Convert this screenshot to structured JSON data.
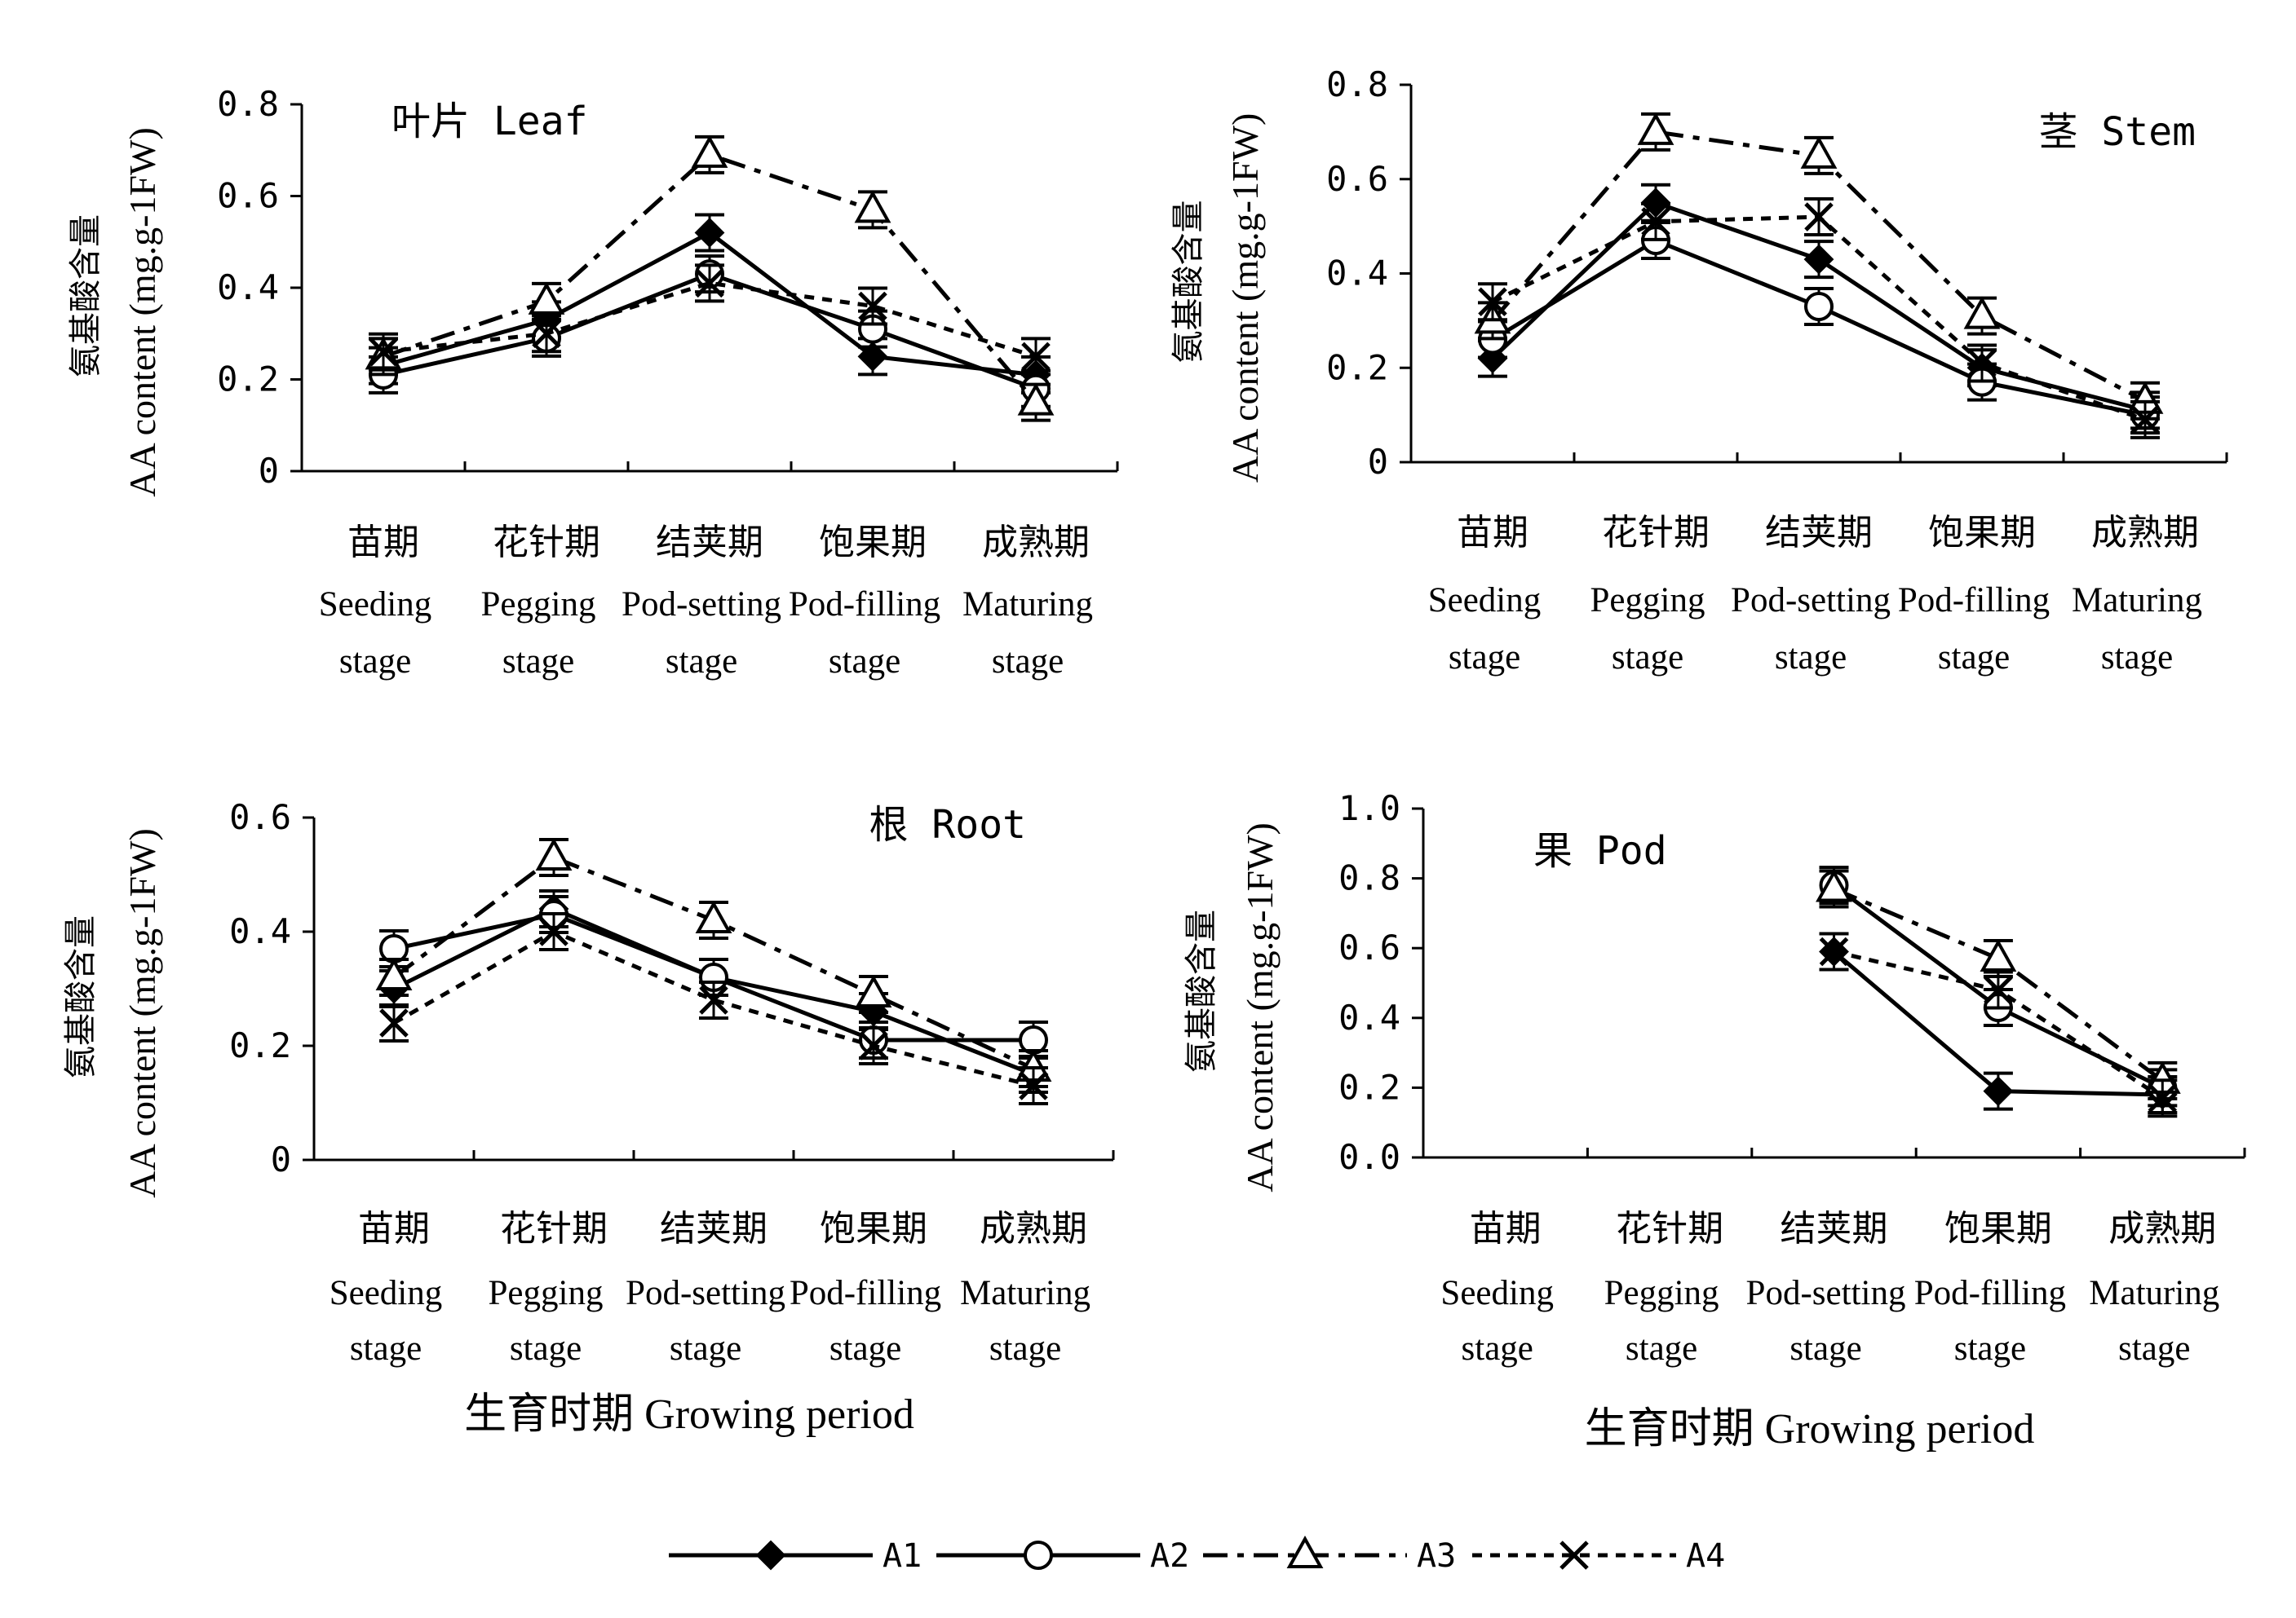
{
  "legend": {
    "series": [
      {
        "name": "A1",
        "marker": "diamond",
        "dash": "solid"
      },
      {
        "name": "A2",
        "marker": "circle",
        "dash": "solid"
      },
      {
        "name": "A3",
        "marker": "triangle",
        "dash": "dashdot"
      },
      {
        "name": "A4",
        "marker": "x",
        "dash": "dotted"
      }
    ]
  },
  "chart_data": [
    {
      "type": "line",
      "title": "叶片 Leaf",
      "ylabel_cn": "氨基酸含量",
      "ylabel_en": "AA content (mg.g-1FW)",
      "ylim": [
        0,
        0.8
      ],
      "yticks": [
        "0",
        "0.2",
        "0.4",
        "0.6",
        "0.8"
      ],
      "categories_cn": [
        "苗期",
        "花针期",
        "结荚期",
        "饱果期",
        "成熟期"
      ],
      "categories_en": [
        [
          "Seeding",
          "stage"
        ],
        [
          "Pegging",
          "stage"
        ],
        [
          "Pod-setting",
          "stage"
        ],
        [
          "Pod-filling",
          "stage"
        ],
        [
          "Maturing",
          "stage"
        ]
      ],
      "xlabel": "",
      "series": [
        {
          "name": "A1",
          "values": [
            0.23,
            0.33,
            0.52,
            0.25,
            0.21
          ]
        },
        {
          "name": "A2",
          "values": [
            0.21,
            0.29,
            0.43,
            0.31,
            0.18
          ]
        },
        {
          "name": "A3",
          "values": [
            0.25,
            0.37,
            0.69,
            0.57,
            0.15
          ]
        },
        {
          "name": "A4",
          "values": [
            0.26,
            0.3,
            0.41,
            0.36,
            0.25
          ]
        }
      ]
    },
    {
      "type": "line",
      "title": "茎 Stem",
      "ylabel_cn": "氨基酸含量",
      "ylabel_en": "AA content (mg.g-1FW)",
      "ylim": [
        0,
        0.8
      ],
      "yticks": [
        "0",
        "0.2",
        "0.4",
        "0.6",
        "0.8"
      ],
      "categories_cn": [
        "苗期",
        "花针期",
        "结荚期",
        "饱果期",
        "成熟期"
      ],
      "categories_en": [
        [
          "Seeding",
          "stage"
        ],
        [
          "Pegging",
          "stage"
        ],
        [
          "Pod-setting",
          "stage"
        ],
        [
          "Pod-filling",
          "stage"
        ],
        [
          "Maturing",
          "stage"
        ]
      ],
      "xlabel": "",
      "series": [
        {
          "name": "A1",
          "values": [
            0.22,
            0.55,
            0.43,
            0.2,
            0.11
          ]
        },
        {
          "name": "A2",
          "values": [
            0.26,
            0.47,
            0.33,
            0.17,
            0.1
          ]
        },
        {
          "name": "A3",
          "values": [
            0.3,
            0.7,
            0.65,
            0.31,
            0.13
          ]
        },
        {
          "name": "A4",
          "values": [
            0.34,
            0.51,
            0.52,
            0.21,
            0.09
          ]
        }
      ]
    },
    {
      "type": "line",
      "title": "根 Root",
      "ylabel_cn": "氨基酸含量",
      "ylabel_en": "AA content (mg.g-1FW)",
      "ylim": [
        0,
        0.6
      ],
      "yticks": [
        "0",
        "0.2",
        "0.4",
        "0.6"
      ],
      "categories_cn": [
        "苗期",
        "花针期",
        "结荚期",
        "饱果期",
        "成熟期"
      ],
      "categories_en": [
        [
          "Seeding",
          "stage"
        ],
        [
          "Pegging",
          "stage"
        ],
        [
          "Pod-setting",
          "stage"
        ],
        [
          "Pod-filling",
          "stage"
        ],
        [
          "Maturing",
          "stage"
        ]
      ],
      "xlabel": "生育时期 Growing period",
      "series": [
        {
          "name": "A1",
          "values": [
            0.3,
            0.44,
            0.32,
            0.26,
            0.15
          ]
        },
        {
          "name": "A2",
          "values": [
            0.37,
            0.43,
            0.32,
            0.21,
            0.21
          ]
        },
        {
          "name": "A3",
          "values": [
            0.32,
            0.53,
            0.42,
            0.29,
            0.16
          ]
        },
        {
          "name": "A4",
          "values": [
            0.24,
            0.4,
            0.28,
            0.2,
            0.13
          ]
        }
      ]
    },
    {
      "type": "line",
      "title": "果 Pod",
      "ylabel_cn": "氨基酸含量",
      "ylabel_en": "AA content (mg.g-1FW)",
      "ylim": [
        0,
        1.0
      ],
      "yticks": [
        "0.0",
        "0.2",
        "0.4",
        "0.6",
        "0.8",
        "1.0"
      ],
      "categories_cn": [
        "苗期",
        "花针期",
        "结荚期",
        "饱果期",
        "成熟期"
      ],
      "categories_en": [
        [
          "Seeding",
          "stage"
        ],
        [
          "Pegging",
          "stage"
        ],
        [
          "Pod-setting",
          "stage"
        ],
        [
          "Pod-filling",
          "stage"
        ],
        [
          "Maturing",
          "stage"
        ]
      ],
      "xlabel": "生育时期 Growing period",
      "series": [
        {
          "name": "A1",
          "values": [
            null,
            null,
            0.59,
            0.19,
            0.18
          ]
        },
        {
          "name": "A2",
          "values": [
            null,
            null,
            0.78,
            0.43,
            0.2
          ]
        },
        {
          "name": "A3",
          "values": [
            null,
            null,
            0.77,
            0.57,
            0.22
          ]
        },
        {
          "name": "A4",
          "values": [
            null,
            null,
            0.59,
            0.48,
            0.17
          ]
        }
      ]
    }
  ]
}
